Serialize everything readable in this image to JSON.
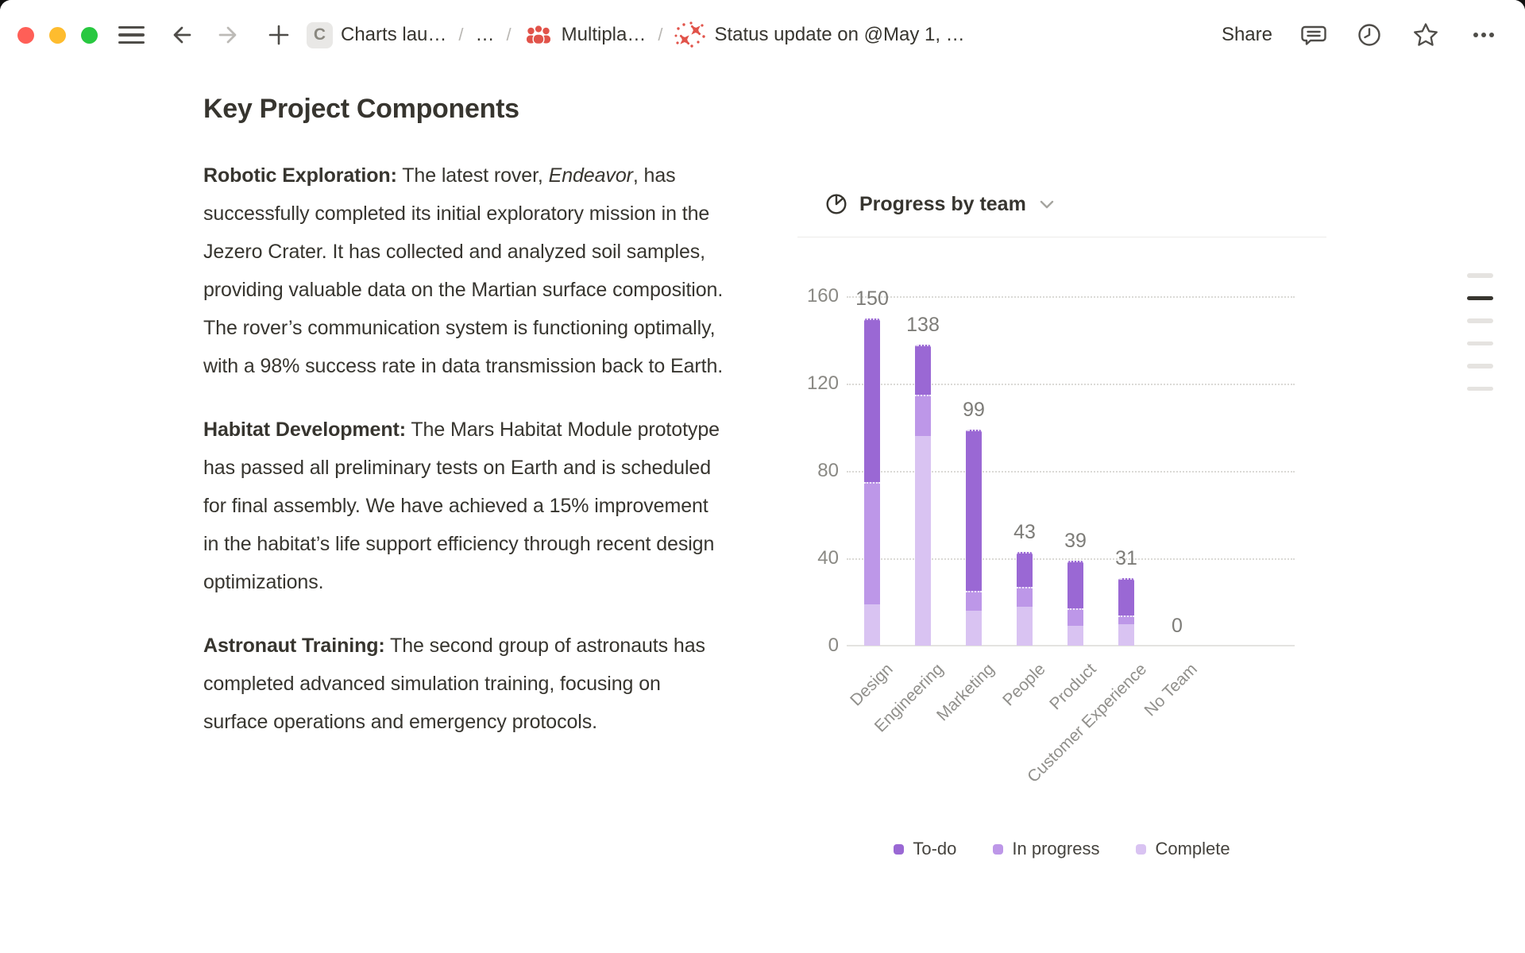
{
  "toolbar": {
    "separator": "/",
    "breadcrumb": [
      {
        "icon": "C",
        "label": "Charts lau…"
      },
      {
        "label": "…"
      },
      {
        "icon": "people",
        "label": "Multipla…"
      },
      {
        "icon": "planes",
        "label": "Status update on @May 1, …"
      }
    ],
    "share_label": "Share",
    "icons": {
      "menu": "hamburger",
      "back": "arrow-left",
      "forward": "arrow-right",
      "new_page": "plus",
      "comments": "speech-bubble",
      "updates": "clock",
      "favorite": "star",
      "more": "ellipsis"
    }
  },
  "document": {
    "title": "Key Project Components",
    "paragraphs": [
      {
        "lead": "Robotic Exploration:",
        "text1": " The latest rover, ",
        "italic": "Endeavor",
        "text2": ", has successfully completed its initial exploratory mission in the Jezero Crater. It has collected and analyzed soil samples, providing valuable data on the Martian surface composition. The rover’s communication system is functioning optimally, with a 98% success rate in data transmission back to Earth."
      },
      {
        "lead": "Habitat Development:",
        "text1": " The Mars Habitat Module prototype has passed all preliminary tests on Earth and is scheduled for final assembly. We have achieved a 15% improvement in the habitat’s life support efficiency through recent design optimizations."
      },
      {
        "lead": "Astronaut Training:",
        "text1": " The second group of astronauts has completed advanced simulation training, focusing on surface operations and emergency protocols."
      }
    ]
  },
  "chart_data": {
    "type": "bar",
    "stacked": true,
    "title": "Progress by team",
    "categories": [
      "Design",
      "Engineering",
      "Marketing",
      "People",
      "Product",
      "Customer Experience",
      "No Team"
    ],
    "series": [
      {
        "name": "To-do",
        "color": "#9a68d4",
        "values": [
          75,
          23,
          74,
          16,
          22,
          17,
          0
        ]
      },
      {
        "name": "In progress",
        "color": "#bd97e8",
        "values": [
          56,
          19,
          9,
          9,
          8,
          4,
          0
        ]
      },
      {
        "name": "Complete",
        "color": "#d9c3f2",
        "values": [
          19,
          96,
          16,
          18,
          9,
          10,
          0
        ]
      }
    ],
    "totals": [
      150,
      138,
      99,
      43,
      39,
      31,
      0
    ],
    "y_ticks": [
      0,
      40,
      80,
      120,
      160
    ],
    "ylim": [
      0,
      160
    ],
    "gridlines": "dotted-horizontal",
    "legend_position": "bottom"
  },
  "outline_indicator": {
    "lines": 6,
    "active_line": 2
  },
  "colors": {
    "traffic_close": "#ff5f57",
    "traffic_minimize": "#febc2e",
    "traffic_zoom": "#28c840",
    "breadcrumb_icon_red": "#e1534a",
    "text_primary": "#37352f",
    "icon_default": "#4f4d49",
    "icon_disabled": "#bcbab6"
  }
}
